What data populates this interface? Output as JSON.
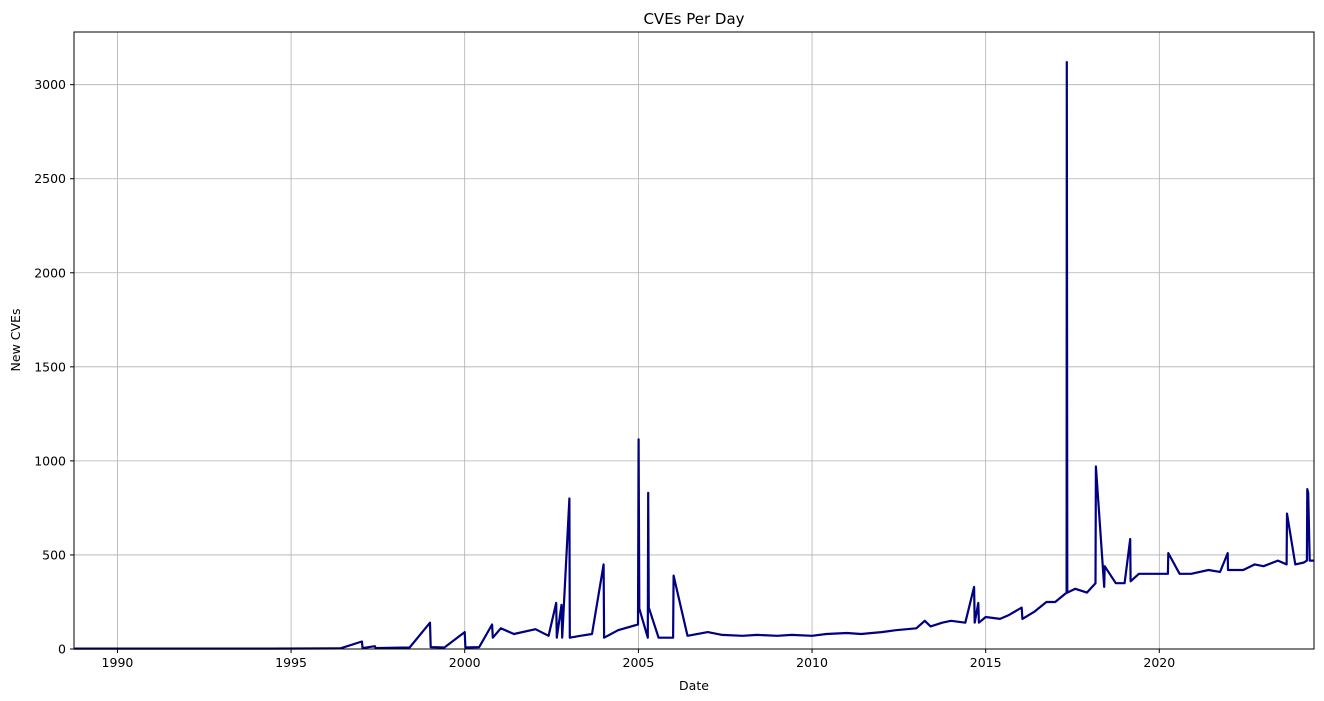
{
  "chart_data": {
    "type": "line",
    "title": "CVEs Per Day",
    "xlabel": "Date",
    "ylabel": "New CVEs",
    "x_axis": {
      "type": "date",
      "range": [
        "1988-10-01",
        "2024-06-15"
      ],
      "ticks": [
        "1990",
        "1995",
        "2000",
        "2005",
        "2010",
        "2015",
        "2020"
      ]
    },
    "y_axis": {
      "range": [
        0,
        3280
      ],
      "ticks": [
        "0",
        "500",
        "1000",
        "1500",
        "2000",
        "2500",
        "3000"
      ]
    },
    "grid": true,
    "line_color": "#000080",
    "series": [
      {
        "x": [
          "1988-10-01",
          "1990-06-01",
          "1992-06-01",
          "1994-06-01",
          "1996-06-01",
          "1997-01-15",
          "1997-01-22",
          "1997-06-01",
          "1997-06-08",
          "1998-06-01",
          "1999-01-01",
          "1999-01-08",
          "1999-06-01",
          "2000-01-01",
          "2000-01-08",
          "2000-06-01",
          "2000-10-15",
          "2000-10-22",
          "2001-01-15",
          "2001-06-01",
          "2002-01-15",
          "2002-06-01",
          "2002-08-20",
          "2002-08-27",
          "2002-10-15",
          "2002-10-22",
          "2003-01-06",
          "2003-01-10",
          "2003-05-01",
          "2003-09-01",
          "2004-01-01",
          "2004-01-06",
          "2004-06-01",
          "2004-12-28",
          "2005-01-03",
          "2005-01-10",
          "2005-04-10",
          "2005-04-14",
          "2005-04-20",
          "2005-08-01",
          "2006-01-01",
          "2006-01-06",
          "2006-06-01",
          "2007-01-01",
          "2007-06-01",
          "2008-01-01",
          "2008-06-01",
          "2009-01-01",
          "2009-06-01",
          "2010-01-01",
          "2010-06-01",
          "2011-01-01",
          "2011-06-01",
          "2012-01-01",
          "2012-06-01",
          "2013-01-01",
          "2013-04-01",
          "2013-06-01",
          "2013-10-01",
          "2014-01-01",
          "2014-06-01",
          "2014-09-01",
          "2014-09-08",
          "2014-10-15",
          "2014-10-22",
          "2015-01-01",
          "2015-06-01",
          "2015-09-01",
          "2016-01-15",
          "2016-01-22",
          "2016-06-01",
          "2016-10-01",
          "2017-01-01",
          "2017-05-01",
          "2017-05-03",
          "2017-05-08",
          "2017-08-01",
          "2017-12-01",
          "2018-03-01",
          "2018-03-05",
          "2018-06-01",
          "2018-06-06",
          "2018-10-01",
          "2019-01-01",
          "2019-03-01",
          "2019-03-05",
          "2019-06-01",
          "2019-10-01",
          "2020-01-01",
          "2020-04-01",
          "2020-04-05",
          "2020-08-01",
          "2020-12-01",
          "2021-06-01",
          "2021-10-01",
          "2021-12-20",
          "2021-12-24",
          "2022-06-01",
          "2022-10-01",
          "2023-01-01",
          "2023-06-01",
          "2023-09-01",
          "2023-09-05",
          "2023-12-01",
          "2024-03-01",
          "2024-04-01",
          "2024-04-06",
          "2024-04-15",
          "2024-05-01",
          "2024-06-15"
        ],
        "y": [
          2,
          2,
          2,
          2,
          3,
          40,
          5,
          15,
          5,
          8,
          140,
          10,
          8,
          90,
          8,
          10,
          130,
          60,
          110,
          80,
          105,
          70,
          245,
          60,
          235,
          60,
          800,
          60,
          70,
          80,
          450,
          60,
          100,
          130,
          1115,
          215,
          60,
          830,
          220,
          60,
          60,
          390,
          70,
          90,
          75,
          70,
          75,
          70,
          75,
          70,
          80,
          85,
          80,
          90,
          100,
          110,
          150,
          120,
          140,
          150,
          140,
          330,
          140,
          245,
          140,
          170,
          160,
          180,
          220,
          160,
          200,
          250,
          250,
          300,
          3120,
          300,
          320,
          300,
          350,
          970,
          330,
          440,
          350,
          350,
          585,
          360,
          400,
          400,
          400,
          400,
          510,
          400,
          400,
          420,
          410,
          510,
          420,
          420,
          450,
          440,
          470,
          450,
          720,
          450,
          460,
          470,
          850,
          830,
          470,
          470
        ]
      }
    ]
  }
}
